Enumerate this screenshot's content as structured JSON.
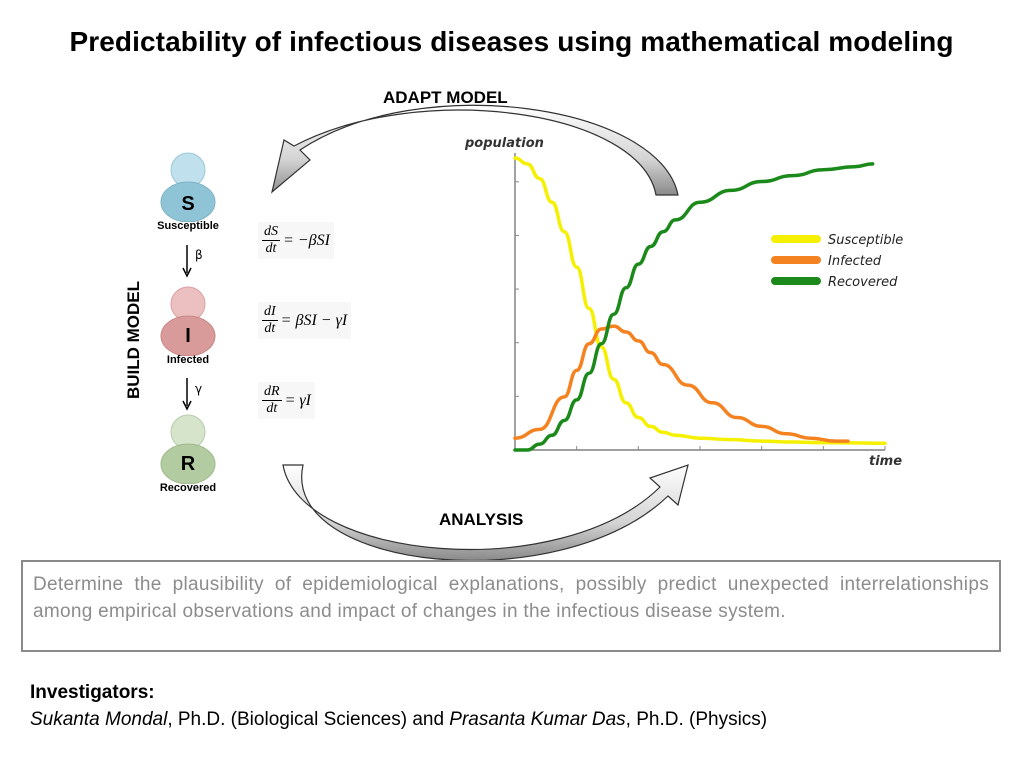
{
  "title": "Predictability of infectious diseases using mathematical modeling",
  "labels": {
    "adapt_model": "ADAPT MODEL",
    "analysis": "ANALYSIS",
    "build_model": "BUILD MODEL"
  },
  "compartments": [
    {
      "letter": "S",
      "caption": "Susceptible",
      "color": "#8fc3d6"
    },
    {
      "letter": "I",
      "caption": "Infected",
      "color": "#d99a9a"
    },
    {
      "letter": "R",
      "caption": "Recovered",
      "color": "#b3cba0"
    }
  ],
  "rates": {
    "beta": "β",
    "gamma": "γ"
  },
  "equations": [
    {
      "num": "dS",
      "den": "dt",
      "rhs": "= −βSI"
    },
    {
      "num": "dI",
      "den": "dt",
      "rhs": "= βSI − γI"
    },
    {
      "num": "dR",
      "den": "dt",
      "rhs": "= γI"
    }
  ],
  "chart_data": {
    "type": "line",
    "ylabel": "population",
    "xlabel": "time",
    "grid": false,
    "legend_position": "top-right",
    "ylim": [
      0,
      1
    ],
    "xlim": [
      0,
      60
    ],
    "series": [
      {
        "name": "Susceptible",
        "color": "#f5f000",
        "x": [
          0,
          2,
          4,
          6,
          8,
          10,
          12,
          14,
          16,
          18,
          20,
          22,
          24,
          26,
          30,
          35,
          40,
          45,
          50,
          55,
          60
        ],
        "y": [
          0.99,
          0.97,
          0.92,
          0.84,
          0.74,
          0.62,
          0.48,
          0.35,
          0.24,
          0.16,
          0.11,
          0.08,
          0.06,
          0.05,
          0.04,
          0.035,
          0.03,
          0.027,
          0.025,
          0.024,
          0.023
        ]
      },
      {
        "name": "Infected",
        "color": "#f58220",
        "x": [
          0,
          4,
          8,
          10,
          12,
          14,
          16,
          18,
          20,
          22,
          24,
          28,
          32,
          36,
          40,
          44,
          48,
          52,
          54
        ],
        "y": [
          0.04,
          0.07,
          0.18,
          0.27,
          0.36,
          0.41,
          0.42,
          0.4,
          0.37,
          0.33,
          0.29,
          0.22,
          0.16,
          0.11,
          0.08,
          0.055,
          0.04,
          0.03,
          0.03
        ]
      },
      {
        "name": "Recovered",
        "color": "#1b8a1b",
        "x": [
          0,
          2,
          4,
          6,
          8,
          10,
          12,
          14,
          16,
          18,
          20,
          22,
          24,
          26,
          30,
          35,
          40,
          45,
          50,
          55,
          58
        ],
        "y": [
          0,
          0,
          0.02,
          0.05,
          0.1,
          0.17,
          0.26,
          0.36,
          0.46,
          0.55,
          0.63,
          0.69,
          0.74,
          0.78,
          0.84,
          0.88,
          0.91,
          0.93,
          0.95,
          0.96,
          0.97
        ]
      }
    ]
  },
  "description": "Determine the plausibility of epidemiological explanations, possibly predict unexpected interrelationships among empirical observations and impact of changes in the infectious disease system.",
  "investigators": {
    "heading": "Investigators:",
    "person1": "Sukanta Mondal",
    "affil1": ", Ph.D. (Biological Sciences) and ",
    "person2": "Prasanta Kumar Das",
    "affil2": ", Ph.D. (Physics)"
  }
}
